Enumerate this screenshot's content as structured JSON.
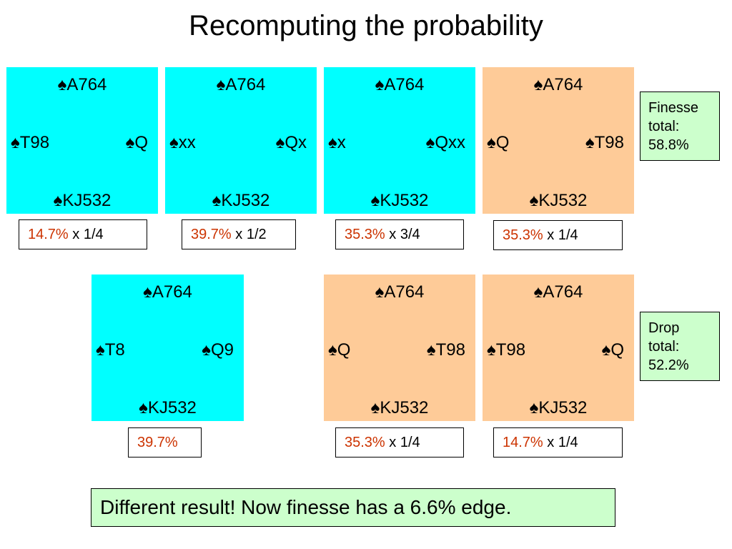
{
  "title": "Recomputing the probability",
  "suit_symbol": "♠",
  "deals": [
    {
      "color": "#00ffff",
      "north": "♠A764",
      "west": "♠T98",
      "east": "♠Q",
      "south": "♠KJ532",
      "prob": "14.7%",
      "mult": " x 1/4"
    },
    {
      "color": "#00ffff",
      "north": "♠A764",
      "west": "♠xx",
      "east": "♠Qx",
      "south": "♠KJ532",
      "prob": "39.7%",
      "mult": " x 1/2"
    },
    {
      "color": "#00ffff",
      "north": "♠A764",
      "west": "♠x",
      "east": "♠Qxx",
      "south": "♠KJ532",
      "prob": "35.3%",
      "mult": " x 3/4"
    },
    {
      "color": "#fecb98",
      "north": "♠A764",
      "west": "♠Q",
      "east": "♠T98",
      "south": "♠KJ532",
      "prob": "35.3%",
      "mult": " x 1/4"
    },
    {
      "color": "#00ffff",
      "north": "♠A764",
      "west": "♠T8",
      "east": "♠Q9",
      "south": "♠KJ532",
      "prob": "39.7%",
      "mult": ""
    },
    {
      "color": "#fecb98",
      "north": "♠A764",
      "west": "♠Q",
      "east": "♠T98",
      "south": "♠KJ532",
      "prob": "35.3%",
      "mult": " x 1/4"
    },
    {
      "color": "#fecb98",
      "north": "♠A764",
      "west": "♠T98",
      "east": "♠Q",
      "south": "♠KJ532",
      "prob": "14.7%",
      "mult": " x 1/4"
    }
  ],
  "finesse_total": {
    "line1": "Finesse",
    "line2": "total:",
    "line3": "58.8%"
  },
  "drop_total": {
    "line1": "Drop",
    "line2": "total:",
    "line3": "52.2%"
  },
  "conclusion": "Different result! Now finesse has a 6.6% edge.",
  "colors": {
    "finesse": "#00ffff",
    "drop": "#fecb98",
    "total_box": "#ccffcc",
    "percent_text": "#cc3300"
  }
}
